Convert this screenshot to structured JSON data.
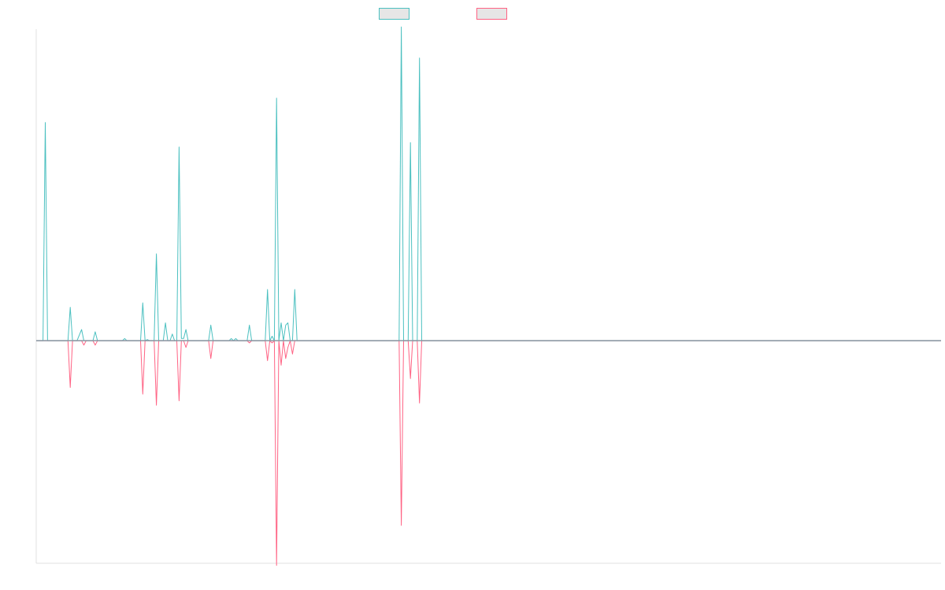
{
  "chart_data": {
    "type": "line",
    "title": "",
    "xlabel": "",
    "ylabel": "",
    "xlim": [
      0,
      399
    ],
    "ylim": [
      -100,
      140
    ],
    "grid": false,
    "legend": "top-center",
    "series": [
      {
        "color": "#4bc0c0",
        "points": [
          [
            0,
            0
          ],
          [
            3,
            0
          ],
          [
            4,
            98
          ],
          [
            5,
            0
          ],
          [
            6,
            0
          ],
          [
            14,
            0
          ],
          [
            15,
            15
          ],
          [
            16,
            0
          ],
          [
            18,
            0
          ],
          [
            20,
            5
          ],
          [
            21,
            0
          ],
          [
            25,
            0
          ],
          [
            26,
            4
          ],
          [
            27,
            0
          ],
          [
            30,
            0
          ],
          [
            38,
            0
          ],
          [
            39,
            1
          ],
          [
            40,
            0
          ],
          [
            46,
            0
          ],
          [
            47,
            17
          ],
          [
            48,
            0
          ],
          [
            49,
            0.5
          ],
          [
            50,
            0
          ],
          [
            52,
            0
          ],
          [
            53,
            39
          ],
          [
            54,
            0
          ],
          [
            56,
            0
          ],
          [
            57,
            8
          ],
          [
            58,
            0
          ],
          [
            59,
            0
          ],
          [
            60,
            3
          ],
          [
            61,
            0
          ],
          [
            62,
            0
          ],
          [
            63,
            87
          ],
          [
            64,
            1
          ],
          [
            65,
            1
          ],
          [
            66,
            5
          ],
          [
            67,
            0
          ],
          [
            76,
            0
          ],
          [
            77,
            7
          ],
          [
            78,
            0
          ],
          [
            85,
            0
          ],
          [
            86,
            1
          ],
          [
            87,
            0
          ],
          [
            88,
            1
          ],
          [
            89,
            0
          ],
          [
            93,
            0
          ],
          [
            94,
            7
          ],
          [
            95,
            0
          ],
          [
            101,
            0
          ],
          [
            102,
            23
          ],
          [
            103,
            0
          ],
          [
            104,
            2
          ],
          [
            105,
            0
          ],
          [
            106,
            109
          ],
          [
            107,
            0
          ],
          [
            108,
            8
          ],
          [
            109,
            0
          ],
          [
            110,
            7
          ],
          [
            111,
            8
          ],
          [
            112,
            0
          ],
          [
            113,
            0
          ],
          [
            114,
            23
          ],
          [
            115,
            0
          ],
          [
            160,
            0
          ],
          [
            161,
            141
          ],
          [
            162,
            0
          ],
          [
            164,
            0
          ],
          [
            165,
            89
          ],
          [
            166,
            0
          ],
          [
            168,
            0
          ],
          [
            169,
            127
          ],
          [
            170,
            0
          ],
          [
            399,
            0
          ]
        ]
      },
      {
        "color": "#ff6384",
        "points": [
          [
            0,
            0
          ],
          [
            14,
            0
          ],
          [
            15,
            -21
          ],
          [
            16,
            0
          ],
          [
            20,
            0
          ],
          [
            21,
            -2
          ],
          [
            22,
            0
          ],
          [
            25,
            0
          ],
          [
            26,
            -2
          ],
          [
            27,
            0
          ],
          [
            46,
            0
          ],
          [
            47,
            -24
          ],
          [
            48,
            0
          ],
          [
            52,
            0
          ],
          [
            53,
            -29
          ],
          [
            54,
            0
          ],
          [
            62,
            0
          ],
          [
            63,
            -27
          ],
          [
            64,
            0
          ],
          [
            65,
            0
          ],
          [
            66,
            -3
          ],
          [
            67,
            0
          ],
          [
            76,
            0
          ],
          [
            77,
            -8
          ],
          [
            78,
            0
          ],
          [
            93,
            0
          ],
          [
            94,
            -1
          ],
          [
            95,
            0
          ],
          [
            101,
            0
          ],
          [
            102,
            -9
          ],
          [
            103,
            0
          ],
          [
            104,
            -1
          ],
          [
            105,
            0
          ],
          [
            106,
            -101
          ],
          [
            107,
            0
          ],
          [
            108,
            -11
          ],
          [
            109,
            0
          ],
          [
            110,
            -8
          ],
          [
            111,
            -3
          ],
          [
            112,
            0
          ],
          [
            113,
            -6
          ],
          [
            114,
            0
          ],
          [
            115,
            0
          ],
          [
            160,
            0
          ],
          [
            161,
            -83
          ],
          [
            162,
            0
          ],
          [
            164,
            0
          ],
          [
            165,
            -17
          ],
          [
            166,
            0
          ],
          [
            168,
            0
          ],
          [
            169,
            -28
          ],
          [
            170,
            0
          ],
          [
            399,
            0
          ]
        ]
      }
    ]
  }
}
